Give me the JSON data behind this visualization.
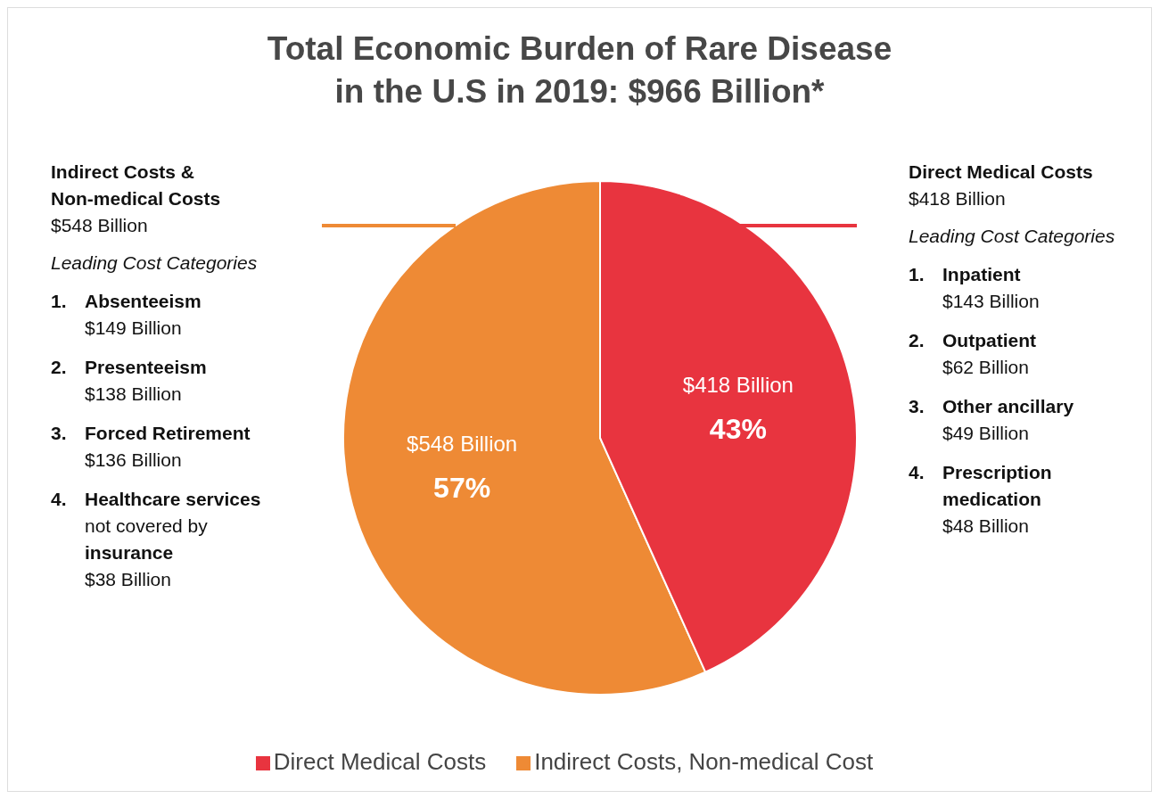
{
  "chart_data": {
    "type": "pie",
    "title": "Total Economic Burden of Rare Disease\nin the U.S in 2019: $966 Billion*",
    "categories": [
      "Indirect Costs, Non-medical Cost",
      "Direct Medical Costs"
    ],
    "values": [
      548,
      418
    ],
    "colors": [
      "#ee8a35",
      "#e8343f"
    ],
    "value_labels": [
      "$548 Billion",
      "$418 Billion"
    ],
    "legend": "bottom",
    "annotations": [
      "Indirect Costs &",
      "Non-medical Costs",
      "$548 Billion",
      "Leading Cost Categories",
      "1.",
      "Absenteeism",
      "$149 Billion",
      "2.",
      "Presenteeism",
      "$138 Billion",
      "3.",
      "Forced Retirement",
      "$136 Billion",
      "4.",
      "Healthcare services",
      "not covered by",
      "insurance",
      "$38 Billion",
      "Direct Medical Costs",
      "$418 Billion",
      "Leading Cost Categories",
      "1.",
      "Inpatient",
      "$143 Billion",
      "2.",
      "Outpatient",
      "$62 Billion",
      "3.",
      "Other ancillary",
      "$49 Billion",
      "4.",
      "Prescription",
      "medication",
      "$48 Billion",
      {
        "text": "57%",
        "x": "Indirect Costs, Non-medical Cost"
      },
      {
        "text": "43%",
        "x": "Direct Medical Costs"
      }
    ]
  }
}
